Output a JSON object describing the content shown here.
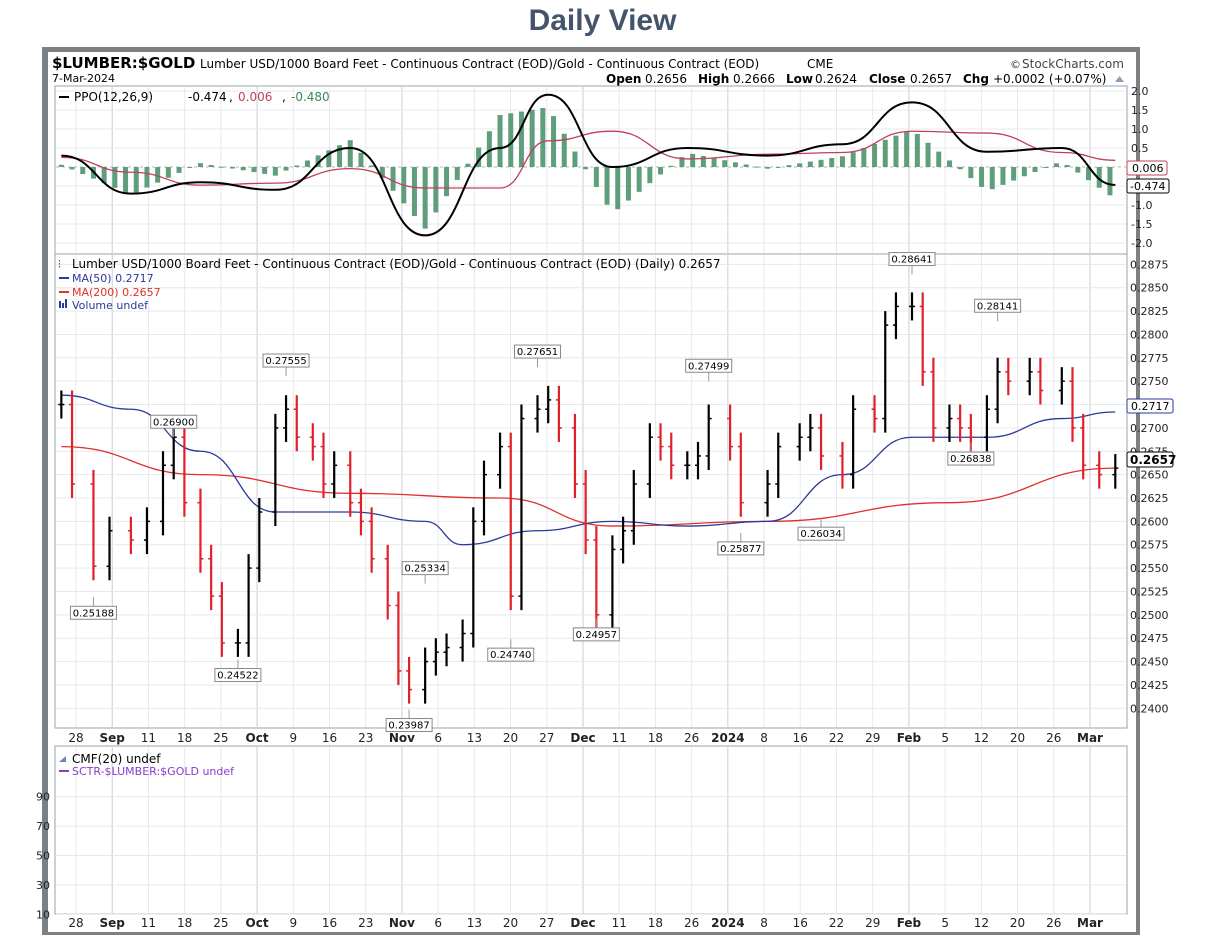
{
  "page_title": "Daily View",
  "header": {
    "symbol": "$LUMBER:$GOLD",
    "description": "Lumber USD/1000 Board Feet - Continuous Contract (EOD)/Gold - Continuous Contract (EOD)",
    "exchange": "CME",
    "watermark": "StockCharts.com",
    "date": "7-Mar-2024",
    "ohlc": {
      "open": "0.2656",
      "high": "0.2666",
      "low": "0.2624",
      "close": "0.2657",
      "chg": "+0.0002 (+0.07%)"
    },
    "ohlc_labels": {
      "open": "Open",
      "high": "High",
      "low": "Low",
      "close": "Close",
      "chg": "Chg"
    }
  },
  "ppo_panel": {
    "legend_name": "PPO(12,26,9)",
    "ppo": "-0.474",
    "signal": "0.006",
    "histogram": "-0.480",
    "y_ticks": [
      "2.0",
      "1.5",
      "1.0",
      "0.5",
      "-0.5",
      "-1.0",
      "-1.5",
      "-2.0"
    ],
    "badges": [
      "0.006",
      "-0.474"
    ]
  },
  "price_panel": {
    "legend_main": "Lumber USD/1000 Board Feet - Continuous Contract (EOD)/Gold - Continuous Contract (EOD) (Daily) 0.2657",
    "legend_ma50": "MA(50) 0.2717",
    "legend_ma200": "MA(200) 0.2657",
    "legend_volume": "Volume undef",
    "y_ticks": [
      "0.2875",
      "0.2850",
      "0.2825",
      "0.2800",
      "0.2775",
      "0.2750",
      "0.2725",
      "0.2700",
      "0.2675",
      "0.2650",
      "0.2625",
      "0.2600",
      "0.2575",
      "0.2550",
      "0.2525",
      "0.2500",
      "0.2475",
      "0.2450",
      "0.2425",
      "0.2400"
    ],
    "badges": {
      "ma50": "0.2717",
      "close": "0.2657"
    },
    "annotations": [
      "0.25188",
      "0.24522",
      "0.26900",
      "0.27555",
      "0.25334",
      "0.23987",
      "0.27651",
      "0.24740",
      "0.24957",
      "0.27499",
      "0.25877",
      "0.26034",
      "0.28641",
      "0.28141",
      "0.26838"
    ]
  },
  "x_axis": {
    "labels": [
      "28",
      "Sep",
      "11",
      "18",
      "25",
      "Oct",
      "9",
      "16",
      "23",
      "Nov",
      "6",
      "13",
      "20",
      "27",
      "Dec",
      "11",
      "18",
      "26",
      "2024",
      "8",
      "16",
      "22",
      "29",
      "Feb",
      "5",
      "12",
      "20",
      "26",
      "Mar"
    ],
    "bold": [
      "Sep",
      "Oct",
      "Nov",
      "Dec",
      "2024",
      "Feb",
      "Mar"
    ]
  },
  "cmf_panel": {
    "legend_cmf": "CMF(20) undef",
    "legend_sctr": "SCTR-$LUMBER:$GOLD undef",
    "y_ticks": [
      "90",
      "70",
      "50",
      "30",
      "10"
    ]
  },
  "colors": {
    "ppo_line": "#000000",
    "signal_line": "#c0405a",
    "histogram": "#5f9e7a",
    "ma50": "#2b3a9a",
    "ma200": "#e0302a",
    "up_bar": "#000000",
    "down_bar": "#e0202a",
    "title": "#44546a",
    "frame": "#7b8085"
  },
  "chart_data": {
    "type": "ohlc",
    "title": "$LUMBER:$GOLD",
    "ylim": [
      0.238,
      0.2885
    ],
    "close_series": [
      {
        "date": "2023-08-23",
        "close": 0.2725
      },
      {
        "date": "2023-08-25",
        "close": 0.264
      },
      {
        "date": "2023-08-29",
        "close": 0.2552
      },
      {
        "date": "2023-09-01",
        "close": 0.259
      },
      {
        "date": "2023-09-05",
        "close": 0.258
      },
      {
        "date": "2023-09-08",
        "close": 0.26
      },
      {
        "date": "2023-09-11",
        "close": 0.266
      },
      {
        "date": "2023-09-13",
        "close": 0.269
      },
      {
        "date": "2023-09-15",
        "close": 0.262
      },
      {
        "date": "2023-09-18",
        "close": 0.256
      },
      {
        "date": "2023-09-20",
        "close": 0.252
      },
      {
        "date": "2023-09-22",
        "close": 0.247
      },
      {
        "date": "2023-09-25",
        "close": 0.247
      },
      {
        "date": "2023-09-27",
        "close": 0.255
      },
      {
        "date": "2023-09-29",
        "close": 0.261
      },
      {
        "date": "2023-10-02",
        "close": 0.27
      },
      {
        "date": "2023-10-04",
        "close": 0.272
      },
      {
        "date": "2023-10-06",
        "close": 0.269
      },
      {
        "date": "2023-10-09",
        "close": 0.268
      },
      {
        "date": "2023-10-11",
        "close": 0.264
      },
      {
        "date": "2023-10-13",
        "close": 0.266
      },
      {
        "date": "2023-10-16",
        "close": 0.262
      },
      {
        "date": "2023-10-18",
        "close": 0.26
      },
      {
        "date": "2023-10-20",
        "close": 0.256
      },
      {
        "date": "2023-10-23",
        "close": 0.251
      },
      {
        "date": "2023-10-25",
        "close": 0.244
      },
      {
        "date": "2023-10-27",
        "close": 0.242
      },
      {
        "date": "2023-10-30",
        "close": 0.245
      },
      {
        "date": "2023-11-01",
        "close": 0.246
      },
      {
        "date": "2023-11-03",
        "close": 0.2465
      },
      {
        "date": "2023-11-06",
        "close": 0.248
      },
      {
        "date": "2023-11-08",
        "close": 0.26
      },
      {
        "date": "2023-11-10",
        "close": 0.265
      },
      {
        "date": "2023-11-13",
        "close": 0.268
      },
      {
        "date": "2023-11-15",
        "close": 0.252
      },
      {
        "date": "2023-11-17",
        "close": 0.271
      },
      {
        "date": "2023-11-20",
        "close": 0.272
      },
      {
        "date": "2023-11-22",
        "close": 0.273
      },
      {
        "date": "2023-11-24",
        "close": 0.27
      },
      {
        "date": "2023-11-27",
        "close": 0.264
      },
      {
        "date": "2023-11-29",
        "close": 0.258
      },
      {
        "date": "2023-12-01",
        "close": 0.25
      },
      {
        "date": "2023-12-04",
        "close": 0.257
      },
      {
        "date": "2023-12-06",
        "close": 0.259
      },
      {
        "date": "2023-12-08",
        "close": 0.264
      },
      {
        "date": "2023-12-11",
        "close": 0.269
      },
      {
        "date": "2023-12-13",
        "close": 0.268
      },
      {
        "date": "2023-12-15",
        "close": 0.266
      },
      {
        "date": "2023-12-18",
        "close": 0.266
      },
      {
        "date": "2023-12-20",
        "close": 0.267
      },
      {
        "date": "2023-12-22",
        "close": 0.271
      },
      {
        "date": "2023-12-26",
        "close": 0.268
      },
      {
        "date": "2023-12-28",
        "close": 0.262
      },
      {
        "date": "2024-01-02",
        "close": 0.264
      },
      {
        "date": "2024-01-04",
        "close": 0.268
      },
      {
        "date": "2024-01-08",
        "close": 0.269
      },
      {
        "date": "2024-01-10",
        "close": 0.27
      },
      {
        "date": "2024-01-12",
        "close": 0.267
      },
      {
        "date": "2024-01-16",
        "close": 0.265
      },
      {
        "date": "2024-01-18",
        "close": 0.272
      },
      {
        "date": "2024-01-22",
        "close": 0.271
      },
      {
        "date": "2024-01-24",
        "close": 0.281
      },
      {
        "date": "2024-01-26",
        "close": 0.283
      },
      {
        "date": "2024-01-29",
        "close": 0.283
      },
      {
        "date": "2024-01-31",
        "close": 0.276
      },
      {
        "date": "2024-02-02",
        "close": 0.27
      },
      {
        "date": "2024-02-05",
        "close": 0.271
      },
      {
        "date": "2024-02-07",
        "close": 0.27
      },
      {
        "date": "2024-02-09",
        "close": 0.269
      },
      {
        "date": "2024-02-12",
        "close": 0.272
      },
      {
        "date": "2024-02-14",
        "close": 0.276
      },
      {
        "date": "2024-02-16",
        "close": 0.275
      },
      {
        "date": "2024-02-20",
        "close": 0.276
      },
      {
        "date": "2024-02-22",
        "close": 0.274
      },
      {
        "date": "2024-02-26",
        "close": 0.275
      },
      {
        "date": "2024-02-28",
        "close": 0.27
      },
      {
        "date": "2024-03-01",
        "close": 0.266
      },
      {
        "date": "2024-03-04",
        "close": 0.265
      },
      {
        "date": "2024-03-07",
        "close": 0.2657
      }
    ],
    "ma50_series": [
      {
        "date": "2023-08-23",
        "value": 0.2735
      },
      {
        "date": "2023-09-05",
        "value": 0.272
      },
      {
        "date": "2023-09-18",
        "value": 0.2675
      },
      {
        "date": "2023-10-02",
        "value": 0.261
      },
      {
        "date": "2023-10-16",
        "value": 0.261
      },
      {
        "date": "2023-10-30",
        "value": 0.26
      },
      {
        "date": "2023-11-06",
        "value": 0.2575
      },
      {
        "date": "2023-11-20",
        "value": 0.259
      },
      {
        "date": "2023-12-04",
        "value": 0.26
      },
      {
        "date": "2023-12-18",
        "value": 0.2595
      },
      {
        "date": "2024-01-02",
        "value": 0.26
      },
      {
        "date": "2024-01-16",
        "value": 0.265
      },
      {
        "date": "2024-01-29",
        "value": 0.269
      },
      {
        "date": "2024-02-12",
        "value": 0.269
      },
      {
        "date": "2024-02-26",
        "value": 0.271
      },
      {
        "date": "2024-03-07",
        "value": 0.2717
      }
    ],
    "ma200_series": [
      {
        "date": "2023-08-23",
        "value": 0.268
      },
      {
        "date": "2023-09-18",
        "value": 0.265
      },
      {
        "date": "2023-10-16",
        "value": 0.263
      },
      {
        "date": "2023-11-13",
        "value": 0.2625
      },
      {
        "date": "2023-12-04",
        "value": 0.2595
      },
      {
        "date": "2024-01-02",
        "value": 0.26
      },
      {
        "date": "2024-02-05",
        "value": 0.262
      },
      {
        "date": "2024-03-07",
        "value": 0.2657
      }
    ],
    "ppo_series": [
      {
        "date": "2023-08-23",
        "value": 0.3
      },
      {
        "date": "2023-09-05",
        "value": -0.7
      },
      {
        "date": "2023-09-18",
        "value": -0.4
      },
      {
        "date": "2023-10-02",
        "value": -0.6
      },
      {
        "date": "2023-10-16",
        "value": 0.5
      },
      {
        "date": "2023-10-30",
        "value": -1.8
      },
      {
        "date": "2023-11-13",
        "value": 0.5
      },
      {
        "date": "2023-11-22",
        "value": 1.9
      },
      {
        "date": "2023-12-04",
        "value": 0.0
      },
      {
        "date": "2023-12-18",
        "value": 0.5
      },
      {
        "date": "2024-01-02",
        "value": 0.3
      },
      {
        "date": "2024-01-16",
        "value": 0.6
      },
      {
        "date": "2024-01-29",
        "value": 1.7
      },
      {
        "date": "2024-02-12",
        "value": 0.4
      },
      {
        "date": "2024-02-26",
        "value": 0.5
      },
      {
        "date": "2024-03-07",
        "value": -0.474
      }
    ],
    "annotations": [
      {
        "date": "2023-08-29",
        "value": 0.25188,
        "side": "low"
      },
      {
        "date": "2023-09-25",
        "value": 0.24522,
        "side": "low"
      },
      {
        "date": "2023-09-13",
        "value": 0.269,
        "side": "high"
      },
      {
        "date": "2023-10-04",
        "value": 0.27555,
        "side": "high"
      },
      {
        "date": "2023-10-30",
        "value": 0.25334,
        "side": "high"
      },
      {
        "date": "2023-10-27",
        "value": 0.23987,
        "side": "low"
      },
      {
        "date": "2023-11-20",
        "value": 0.27651,
        "side": "high"
      },
      {
        "date": "2023-11-15",
        "value": 0.2474,
        "side": "low"
      },
      {
        "date": "2023-12-01",
        "value": 0.24957,
        "side": "low"
      },
      {
        "date": "2023-12-22",
        "value": 0.27499,
        "side": "high"
      },
      {
        "date": "2023-12-28",
        "value": 0.25877,
        "side": "low"
      },
      {
        "date": "2024-01-12",
        "value": 0.26034,
        "side": "low"
      },
      {
        "date": "2024-01-29",
        "value": 0.28641,
        "side": "high"
      },
      {
        "date": "2024-02-14",
        "value": 0.28141,
        "side": "high"
      },
      {
        "date": "2024-02-09",
        "value": 0.26838,
        "side": "low"
      }
    ]
  }
}
